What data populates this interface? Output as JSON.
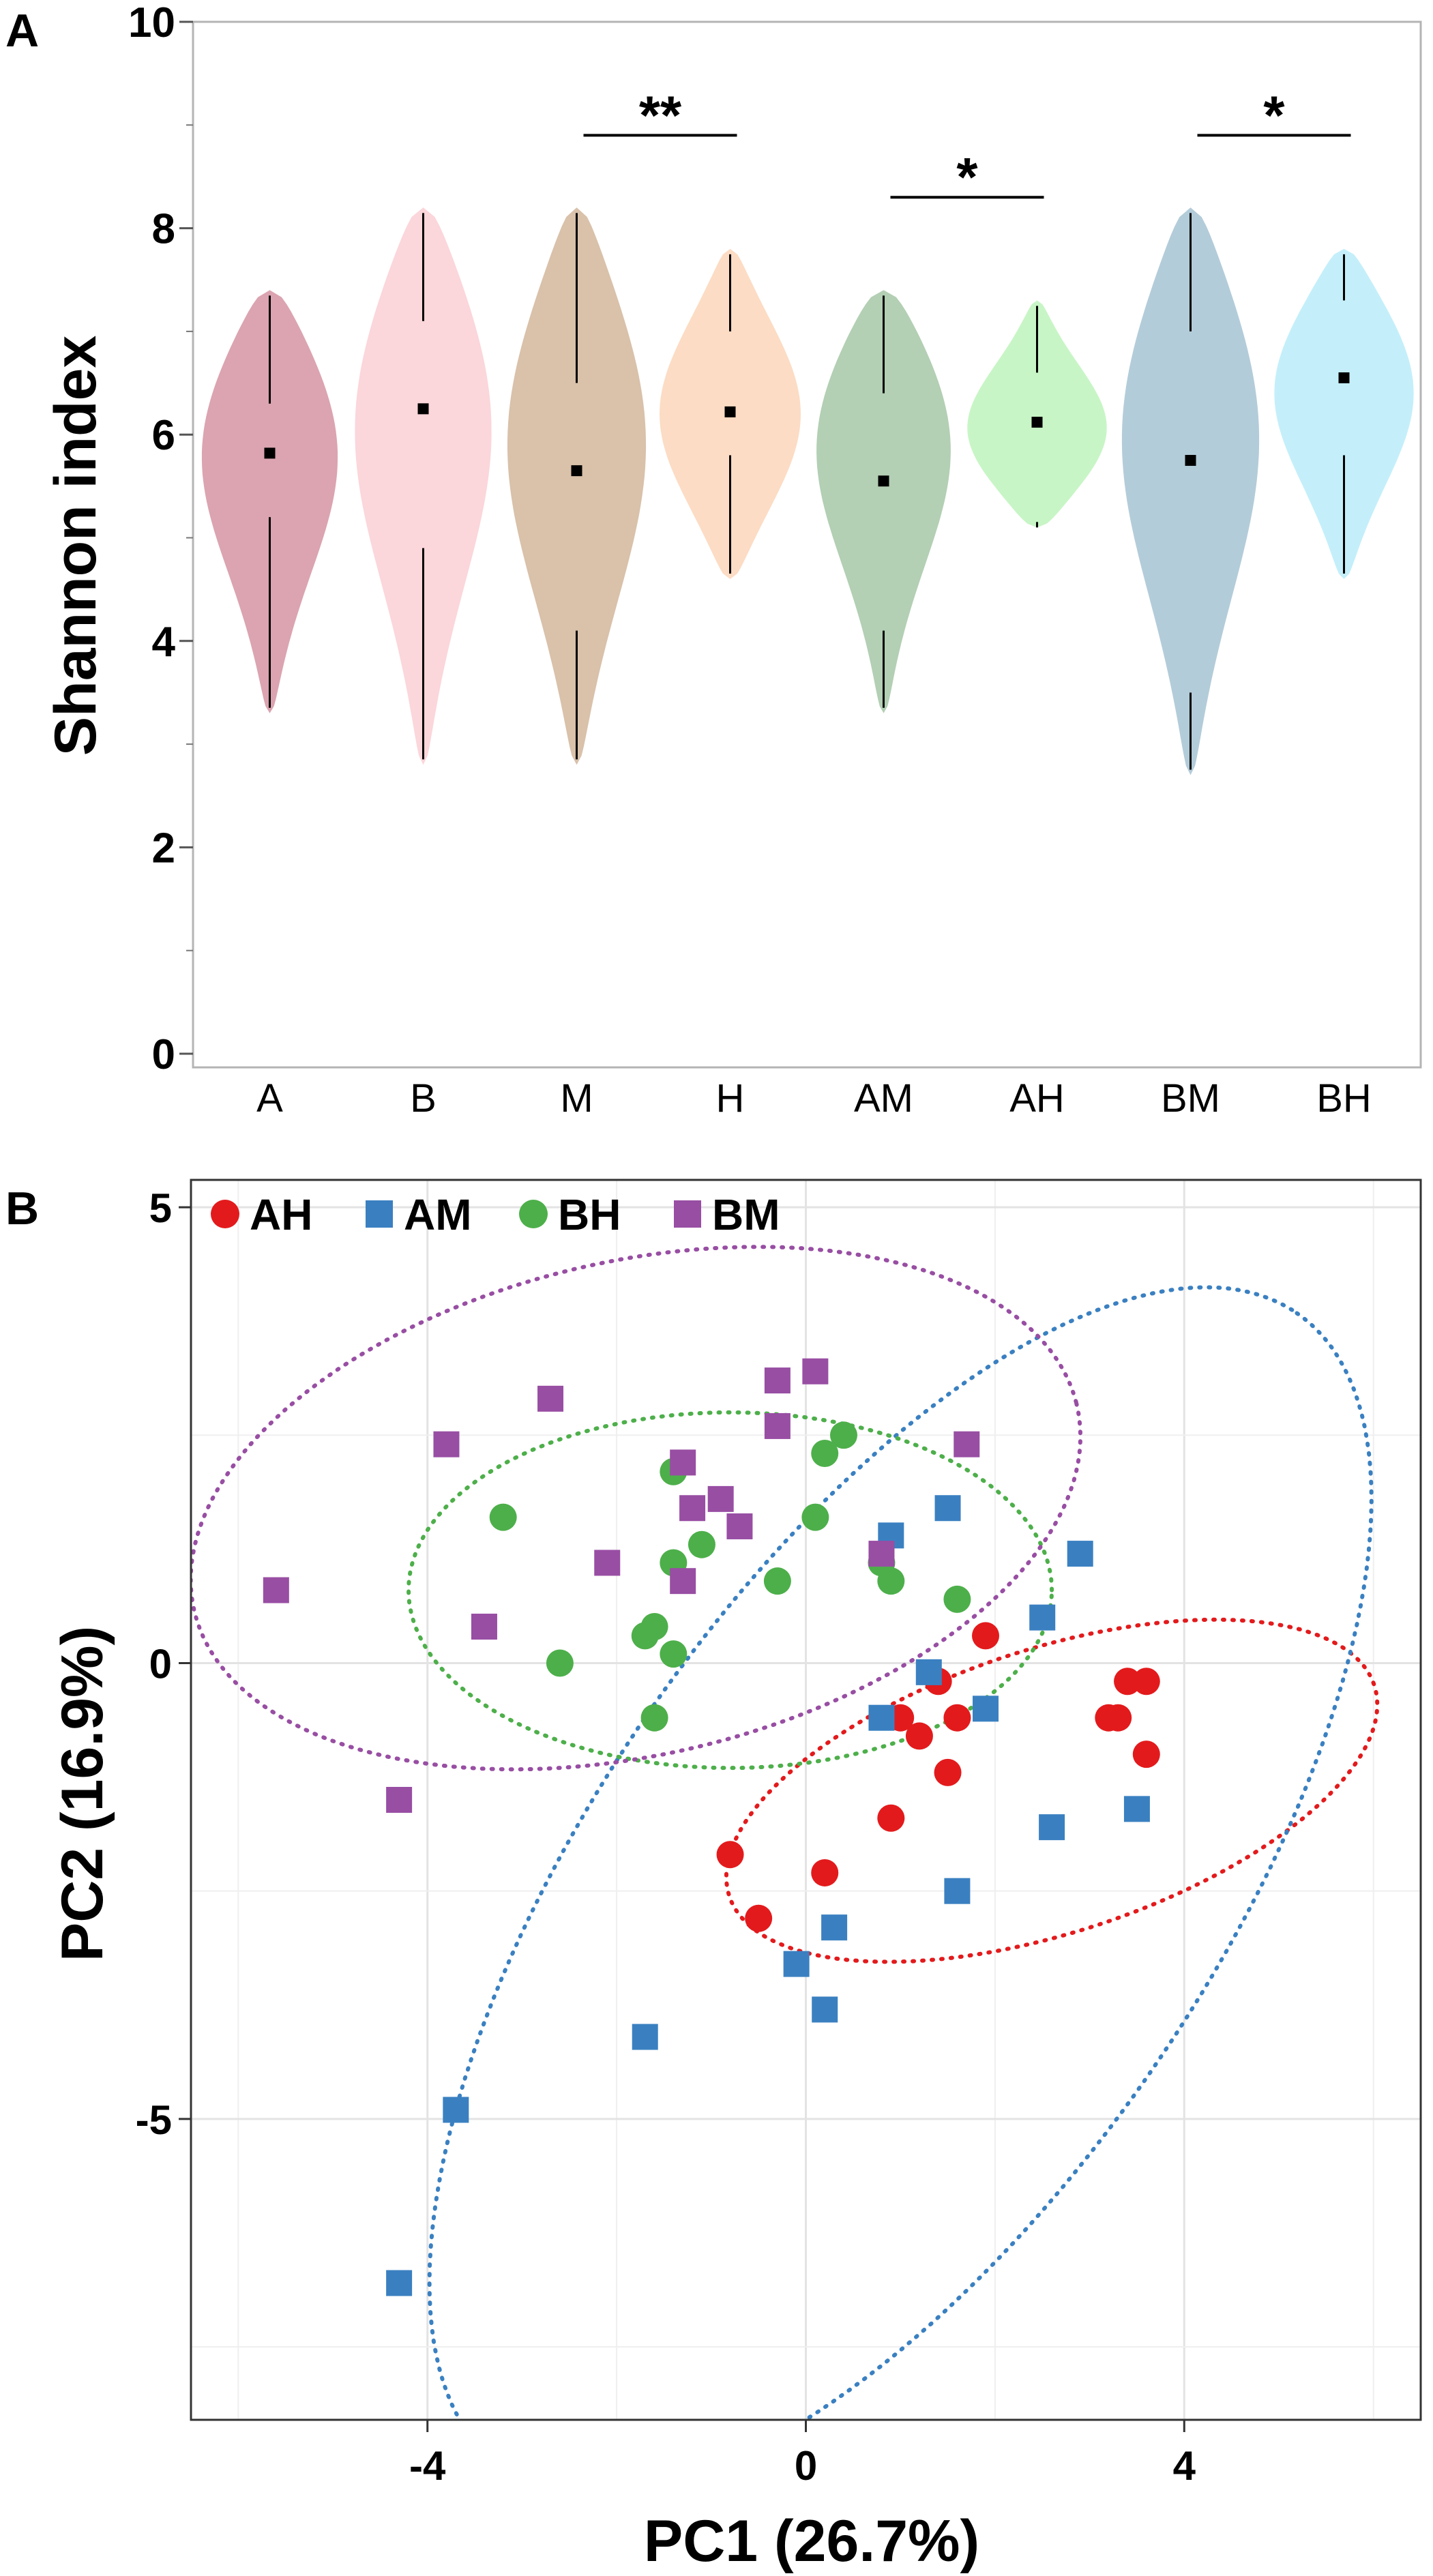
{
  "chart_data": [
    {
      "type": "violin",
      "panel_label": "A",
      "ylabel": "Shannon index",
      "xlabel": "",
      "ylim": [
        0,
        10
      ],
      "yticks": [
        0,
        2,
        4,
        6,
        8,
        10
      ],
      "grid": false,
      "categories": [
        "A",
        "B",
        "M",
        "H",
        "AM",
        "AH",
        "BM",
        "BH"
      ],
      "colors": [
        "#dba4b0",
        "#fbd6da",
        "#d9c1aa",
        "#fcdcc4",
        "#b3cfb4",
        "#c8f5c6",
        "#b3ccd9",
        "#c4effa"
      ],
      "series": [
        {
          "name": "A",
          "min": 3.3,
          "max": 7.4,
          "q1": 5.2,
          "median": 5.82,
          "q3": 6.3,
          "mode": 6.0
        },
        {
          "name": "B",
          "min": 2.8,
          "max": 8.2,
          "q1": 4.9,
          "median": 6.25,
          "q3": 7.1,
          "mode": 6.3
        },
        {
          "name": "M",
          "min": 2.8,
          "max": 8.2,
          "q1": 4.1,
          "median": 5.65,
          "q3": 6.5,
          "mode": 6.1
        },
        {
          "name": "H",
          "min": 4.6,
          "max": 7.8,
          "q1": 5.8,
          "median": 6.22,
          "q3": 7.0,
          "mode": 6.2
        },
        {
          "name": "AM",
          "min": 3.3,
          "max": 7.4,
          "q1": 4.1,
          "median": 5.55,
          "q3": 6.4,
          "mode": 6.1
        },
        {
          "name": "AH",
          "min": 5.1,
          "max": 7.3,
          "q1": 5.1,
          "median": 6.12,
          "q3": 6.6,
          "mode": 6.0
        },
        {
          "name": "BM",
          "min": 2.7,
          "max": 8.2,
          "q1": 3.5,
          "median": 5.75,
          "q3": 7.0,
          "mode": 6.2
        },
        {
          "name": "BH",
          "min": 4.6,
          "max": 7.8,
          "q1": 5.8,
          "median": 6.55,
          "q3": 7.3,
          "mode": 6.5
        }
      ],
      "annotations": [
        {
          "from": "M",
          "to": "H",
          "y": 8.9,
          "label": "**"
        },
        {
          "from": "AM",
          "to": "AH",
          "y": 8.3,
          "label": "*"
        },
        {
          "from": "BM",
          "to": "BH",
          "y": 8.9,
          "label": "*"
        }
      ]
    },
    {
      "type": "scatter",
      "panel_label": "B",
      "xlabel": "PC1 (26.7%)",
      "ylabel": "PC2 (16.9%)",
      "xlim": [
        -6.5,
        6.5
      ],
      "ylim": [
        -8.3,
        5.3
      ],
      "xticks": [
        -4,
        0,
        4
      ],
      "yticks": [
        -5,
        0,
        5
      ],
      "grid": true,
      "legend": "top-left",
      "series": [
        {
          "name": "AH",
          "marker": "circle",
          "color": "#e31a1c",
          "ellipse": {
            "cx": 2.6,
            "cy": -1.4,
            "rx": 3.6,
            "ry": 1.55,
            "angle": 19
          },
          "points": [
            [
              1.9,
              0.3
            ],
            [
              1.4,
              -0.2
            ],
            [
              1.0,
              -0.6
            ],
            [
              1.2,
              -0.8
            ],
            [
              1.6,
              -0.6
            ],
            [
              1.5,
              -1.2
            ],
            [
              0.9,
              -1.7
            ],
            [
              3.2,
              -0.6
            ],
            [
              3.4,
              -0.2
            ],
            [
              3.6,
              -0.2
            ],
            [
              3.3,
              -0.6
            ],
            [
              3.6,
              -1.0
            ],
            [
              -0.8,
              -2.1
            ],
            [
              0.2,
              -2.3
            ],
            [
              -0.5,
              -2.8
            ]
          ]
        },
        {
          "name": "AM",
          "marker": "square",
          "color": "#3a80c1",
          "ellipse": {
            "cx": 1.0,
            "cy": -2.5,
            "rx": 7.6,
            "ry": 3.3,
            "angle": 57
          },
          "points": [
            [
              1.5,
              1.7
            ],
            [
              0.9,
              1.4
            ],
            [
              2.9,
              1.2
            ],
            [
              2.5,
              0.5
            ],
            [
              1.3,
              -0.1
            ],
            [
              1.9,
              -0.5
            ],
            [
              0.8,
              -0.6
            ],
            [
              2.6,
              -1.8
            ],
            [
              3.5,
              -1.6
            ],
            [
              1.6,
              -2.5
            ],
            [
              0.3,
              -2.9
            ],
            [
              -0.1,
              -3.3
            ],
            [
              0.2,
              -3.8
            ],
            [
              -1.7,
              -4.1
            ],
            [
              -3.7,
              -4.9
            ],
            [
              -4.3,
              -6.8
            ]
          ]
        },
        {
          "name": "BH",
          "marker": "circle",
          "color": "#4daf4a",
          "ellipse": {
            "cx": -0.8,
            "cy": 0.8,
            "rx": 3.4,
            "ry": 1.95,
            "angle": 0
          },
          "points": [
            [
              0.4,
              2.5
            ],
            [
              0.2,
              2.3
            ],
            [
              -1.4,
              2.1
            ],
            [
              -3.2,
              1.6
            ],
            [
              0.1,
              1.6
            ],
            [
              -1.1,
              1.3
            ],
            [
              -1.4,
              1.1
            ],
            [
              0.8,
              1.1
            ],
            [
              -0.3,
              0.9
            ],
            [
              0.9,
              0.9
            ],
            [
              1.6,
              0.7
            ],
            [
              -1.6,
              0.4
            ],
            [
              -1.7,
              0.3
            ],
            [
              -1.4,
              0.1
            ],
            [
              -2.6,
              0.0
            ],
            [
              -1.6,
              -0.6
            ]
          ]
        },
        {
          "name": "BM",
          "marker": "square",
          "color": "#984ea3",
          "ellipse": {
            "cx": -1.8,
            "cy": 1.7,
            "rx": 4.8,
            "ry": 2.7,
            "angle": 14
          },
          "points": [
            [
              0.1,
              3.2
            ],
            [
              -0.3,
              3.1
            ],
            [
              -2.7,
              2.9
            ],
            [
              -0.3,
              2.6
            ],
            [
              -3.8,
              2.4
            ],
            [
              1.7,
              2.4
            ],
            [
              -1.3,
              2.2
            ],
            [
              -0.9,
              1.8
            ],
            [
              -1.2,
              1.7
            ],
            [
              -0.7,
              1.5
            ],
            [
              -2.1,
              1.1
            ],
            [
              0.8,
              1.2
            ],
            [
              -1.3,
              0.9
            ],
            [
              -5.6,
              0.8
            ],
            [
              -3.4,
              0.4
            ],
            [
              -4.3,
              -1.5
            ]
          ]
        }
      ]
    }
  ]
}
